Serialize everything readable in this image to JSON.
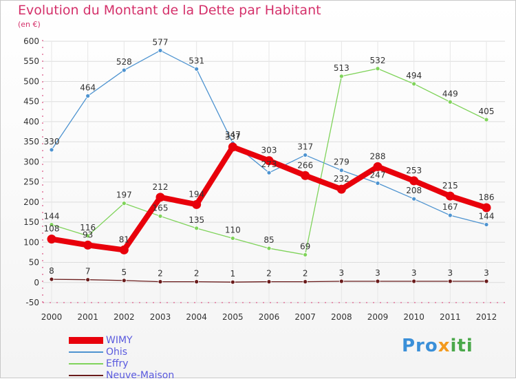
{
  "title": "Evolution du Montant de la Dette par Habitant",
  "unit": "(en €)",
  "logo": "Proxiti",
  "chart_data": {
    "type": "line",
    "title": "Evolution du Montant de la Dette par Habitant",
    "ylabel": "(en €)",
    "x": [
      "2000",
      "2001",
      "2002",
      "2003",
      "2004",
      "2005",
      "2006",
      "2007",
      "2008",
      "2009",
      "2010",
      "2011",
      "2012"
    ],
    "ylim": [
      -50,
      600
    ],
    "yticks": [
      -50,
      0,
      50,
      100,
      150,
      200,
      250,
      300,
      350,
      400,
      450,
      500,
      550,
      600
    ],
    "grid": true,
    "legend_position": "bottom-left",
    "series": [
      {
        "name": "WIMY",
        "color": "#e8000b",
        "values": [
          108,
          93,
          81,
          212,
          194,
          337,
          303,
          266,
          232,
          288,
          253,
          215,
          186
        ],
        "labels": [
          "108",
          "93",
          "81",
          "212",
          "194",
          "337",
          "303",
          "266",
          "232",
          "288",
          "253",
          "215",
          "186"
        ]
      },
      {
        "name": "Ohis",
        "color": "#4d93d0",
        "values": [
          330,
          464,
          528,
          577,
          531,
          347,
          273,
          317,
          279,
          247,
          208,
          167,
          144
        ],
        "labels": [
          "330",
          "464",
          "528",
          "577",
          "531",
          "347",
          "273",
          "317",
          "279",
          "247",
          "208",
          "167",
          "144"
        ]
      },
      {
        "name": "Effry",
        "color": "#7fd35a",
        "values": [
          144,
          116,
          197,
          165,
          135,
          110,
          85,
          69,
          513,
          532,
          494,
          449,
          405
        ],
        "labels": [
          "144",
          "116",
          "197",
          "165",
          "135",
          "110",
          "85",
          "69",
          "513",
          "532",
          "494",
          "449",
          "405"
        ]
      },
      {
        "name": "Neuve-Maison",
        "color": "#6a1b1b",
        "values": [
          8,
          7,
          5,
          2,
          2,
          1,
          2,
          2,
          3,
          3,
          3,
          3,
          3
        ],
        "labels": [
          "8",
          "7",
          "5",
          "2",
          "2",
          "1",
          "2",
          "2",
          "3",
          "3",
          "3",
          "3",
          "3"
        ]
      }
    ]
  }
}
